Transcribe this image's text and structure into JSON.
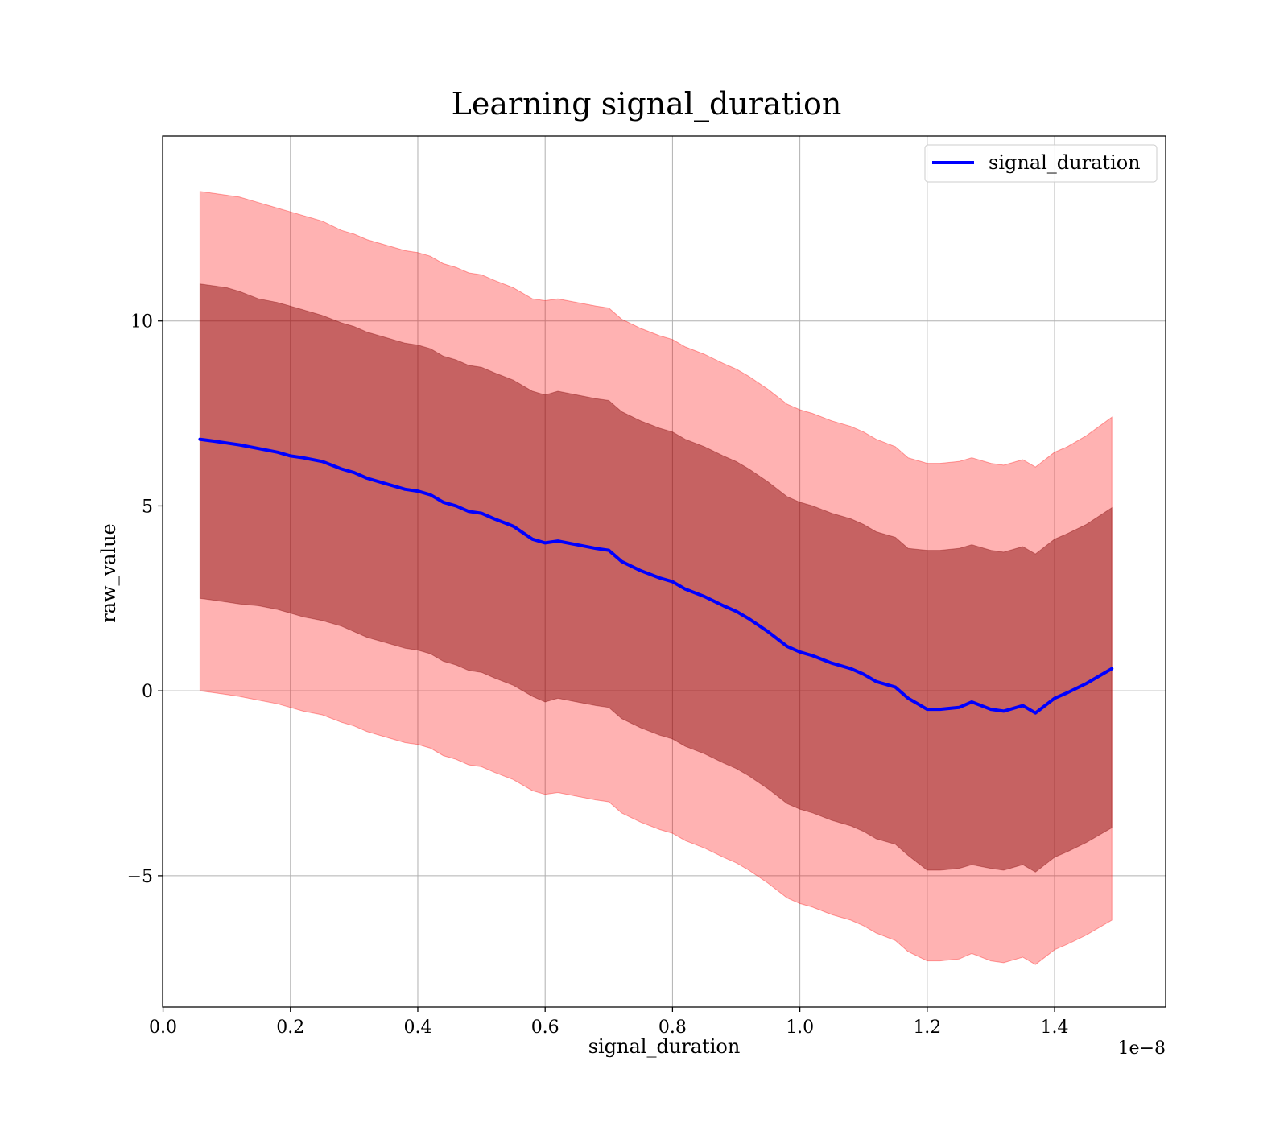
{
  "chart_data": {
    "type": "line",
    "title": "Learning signal_duration",
    "xlabel": "signal_duration",
    "ylabel": "raw_value",
    "x_offset_label": "1e−8",
    "x_scale": 1e-08,
    "xlim": [
      -0.0007,
      1.5744
    ],
    "ylim": [
      -8.55,
      15.0
    ],
    "x_ticks": [
      0.0,
      0.2,
      0.4,
      0.6,
      0.8,
      1.0,
      1.2,
      1.4
    ],
    "x_tick_labels": [
      "0.0",
      "0.2",
      "0.4",
      "0.6",
      "0.8",
      "1.0",
      "1.2",
      "1.4"
    ],
    "y_ticks": [
      -5,
      0,
      5,
      10
    ],
    "y_tick_labels": [
      "−5",
      "0",
      "5",
      "10"
    ],
    "grid": true,
    "legend_location": "upper right",
    "colors": {
      "line": "#0000ff",
      "outer_band": "#ff0000",
      "inner_band": "#800000",
      "grid": "#b0b0b0"
    },
    "series": [
      {
        "name": "signal_duration",
        "x": [
          0.058,
          0.08,
          0.1,
          0.12,
          0.15,
          0.18,
          0.2,
          0.22,
          0.25,
          0.28,
          0.3,
          0.32,
          0.35,
          0.38,
          0.4,
          0.42,
          0.44,
          0.46,
          0.48,
          0.5,
          0.52,
          0.55,
          0.58,
          0.6,
          0.62,
          0.65,
          0.68,
          0.7,
          0.72,
          0.75,
          0.78,
          0.8,
          0.82,
          0.85,
          0.88,
          0.9,
          0.92,
          0.95,
          0.98,
          1.0,
          1.02,
          1.05,
          1.08,
          1.1,
          1.12,
          1.15,
          1.17,
          1.2,
          1.22,
          1.25,
          1.27,
          1.3,
          1.32,
          1.35,
          1.37,
          1.4,
          1.42,
          1.45,
          1.49
        ],
        "y": [
          6.8,
          6.75,
          6.7,
          6.65,
          6.55,
          6.45,
          6.35,
          6.3,
          6.2,
          6.0,
          5.9,
          5.75,
          5.6,
          5.45,
          5.4,
          5.3,
          5.1,
          5.0,
          4.85,
          4.8,
          4.65,
          4.45,
          4.1,
          4.0,
          4.05,
          3.95,
          3.85,
          3.8,
          3.5,
          3.25,
          3.05,
          2.95,
          2.75,
          2.55,
          2.3,
          2.15,
          1.95,
          1.6,
          1.2,
          1.05,
          0.95,
          0.75,
          0.6,
          0.45,
          0.25,
          0.1,
          -0.2,
          -0.5,
          -0.5,
          -0.45,
          -0.3,
          -0.5,
          -0.55,
          -0.4,
          -0.6,
          -0.2,
          -0.05,
          0.2,
          0.6
        ],
        "inner_band_upper": [
          11.0,
          10.95,
          10.9,
          10.8,
          10.6,
          10.5,
          10.4,
          10.3,
          10.15,
          9.95,
          9.85,
          9.7,
          9.55,
          9.4,
          9.35,
          9.25,
          9.05,
          8.95,
          8.8,
          8.75,
          8.6,
          8.4,
          8.1,
          8.0,
          8.1,
          8.0,
          7.9,
          7.85,
          7.55,
          7.3,
          7.1,
          7.0,
          6.8,
          6.6,
          6.35,
          6.2,
          6.0,
          5.65,
          5.25,
          5.1,
          5.0,
          4.8,
          4.65,
          4.5,
          4.3,
          4.15,
          3.85,
          3.8,
          3.8,
          3.85,
          3.95,
          3.8,
          3.75,
          3.9,
          3.7,
          4.1,
          4.25,
          4.5,
          4.95
        ],
        "inner_band_lower": [
          2.5,
          2.45,
          2.4,
          2.35,
          2.3,
          2.2,
          2.1,
          2.0,
          1.9,
          1.75,
          1.6,
          1.45,
          1.3,
          1.15,
          1.1,
          1.0,
          0.8,
          0.7,
          0.55,
          0.5,
          0.35,
          0.15,
          -0.15,
          -0.3,
          -0.2,
          -0.3,
          -0.4,
          -0.45,
          -0.75,
          -1.0,
          -1.2,
          -1.3,
          -1.5,
          -1.7,
          -1.95,
          -2.1,
          -2.3,
          -2.65,
          -3.05,
          -3.2,
          -3.3,
          -3.5,
          -3.65,
          -3.8,
          -4.0,
          -4.15,
          -4.45,
          -4.85,
          -4.85,
          -4.8,
          -4.7,
          -4.8,
          -4.85,
          -4.7,
          -4.9,
          -4.5,
          -4.35,
          -4.1,
          -3.7
        ],
        "outer_band_upper": [
          13.5,
          13.45,
          13.4,
          13.35,
          13.2,
          13.05,
          12.95,
          12.85,
          12.7,
          12.45,
          12.35,
          12.2,
          12.05,
          11.9,
          11.85,
          11.75,
          11.55,
          11.45,
          11.3,
          11.25,
          11.1,
          10.9,
          10.6,
          10.55,
          10.6,
          10.5,
          10.4,
          10.35,
          10.05,
          9.8,
          9.6,
          9.5,
          9.3,
          9.1,
          8.85,
          8.7,
          8.5,
          8.15,
          7.75,
          7.6,
          7.5,
          7.3,
          7.15,
          7.0,
          6.8,
          6.6,
          6.3,
          6.15,
          6.15,
          6.2,
          6.3,
          6.15,
          6.1,
          6.25,
          6.05,
          6.45,
          6.6,
          6.9,
          7.4
        ],
        "outer_band_lower": [
          0.0,
          -0.05,
          -0.1,
          -0.15,
          -0.25,
          -0.35,
          -0.45,
          -0.55,
          -0.65,
          -0.85,
          -0.95,
          -1.1,
          -1.25,
          -1.4,
          -1.45,
          -1.55,
          -1.75,
          -1.85,
          -2.0,
          -2.05,
          -2.2,
          -2.4,
          -2.7,
          -2.8,
          -2.75,
          -2.85,
          -2.95,
          -3.0,
          -3.3,
          -3.55,
          -3.75,
          -3.85,
          -4.05,
          -4.25,
          -4.5,
          -4.65,
          -4.85,
          -5.2,
          -5.6,
          -5.75,
          -5.85,
          -6.05,
          -6.2,
          -6.35,
          -6.55,
          -6.75,
          -7.05,
          -7.3,
          -7.3,
          -7.25,
          -7.1,
          -7.3,
          -7.35,
          -7.2,
          -7.4,
          -7.0,
          -6.85,
          -6.6,
          -6.2
        ]
      }
    ]
  }
}
